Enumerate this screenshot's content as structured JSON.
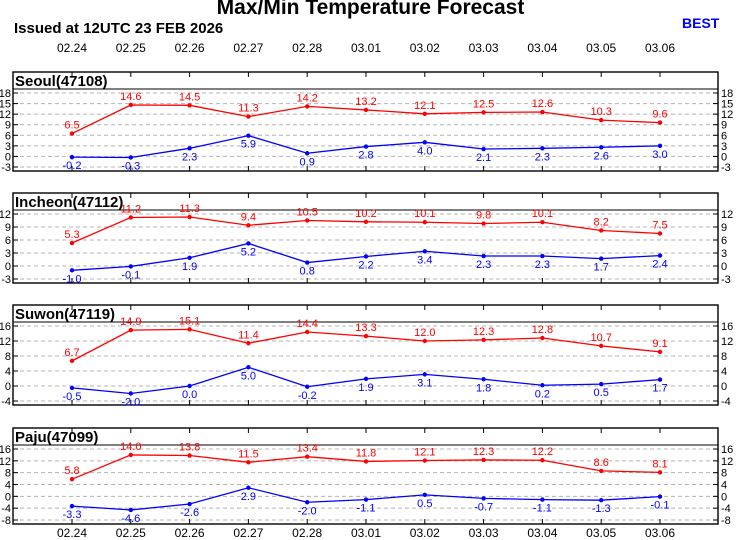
{
  "header": {
    "title": "Max/Min Temperature Forecast",
    "issued": "Issued at 12UTC 23 FEB 2026",
    "badge": "BEST"
  },
  "colors": {
    "max": "#ff0000",
    "min": "#0000ff",
    "badge": "#0000ff",
    "grid": "#b4b4b4",
    "frame": "#000000"
  },
  "chart_data": [
    {
      "type": "line",
      "title": "Seoul(47108)",
      "categories": [
        "02.24",
        "02.25",
        "02.26",
        "02.27",
        "02.28",
        "03.01",
        "03.02",
        "03.03",
        "03.04",
        "03.05",
        "03.06"
      ],
      "series": [
        {
          "values": [
            6.5,
            14.6,
            14.5,
            11.3,
            14.2,
            13.2,
            12.1,
            12.5,
            12.6,
            10.3,
            9.6
          ]
        },
        {
          "values": [
            -0.2,
            -0.3,
            2.3,
            5.9,
            0.9,
            2.8,
            4.0,
            2.1,
            2.3,
            2.6,
            3.0
          ]
        }
      ],
      "ylim": [
        -3,
        18
      ],
      "yticks": [
        -3,
        0,
        3,
        6,
        9,
        12,
        15,
        18
      ],
      "grid": true
    },
    {
      "type": "line",
      "title": "Incheon(47112)",
      "categories": [
        "02.24",
        "02.25",
        "02.26",
        "02.27",
        "02.28",
        "03.01",
        "03.02",
        "03.03",
        "03.04",
        "03.05",
        "03.06"
      ],
      "series": [
        {
          "values": [
            5.3,
            11.2,
            11.3,
            9.4,
            10.5,
            10.2,
            10.1,
            9.8,
            10.1,
            8.2,
            7.5
          ]
        },
        {
          "values": [
            -1.0,
            -0.1,
            1.9,
            5.2,
            0.8,
            2.2,
            3.4,
            2.3,
            2.3,
            1.7,
            2.4
          ]
        }
      ],
      "ylim": [
        -3,
        14
      ],
      "yticks": [
        -3,
        0,
        3,
        6,
        9,
        12
      ],
      "grid": true
    },
    {
      "type": "line",
      "title": "Suwon(47119)",
      "categories": [
        "02.24",
        "02.25",
        "02.26",
        "02.27",
        "02.28",
        "03.01",
        "03.02",
        "03.03",
        "03.04",
        "03.05",
        "03.06"
      ],
      "series": [
        {
          "values": [
            6.7,
            14.9,
            15.1,
            11.4,
            14.4,
            13.3,
            12.0,
            12.3,
            12.8,
            10.7,
            9.1
          ]
        },
        {
          "values": [
            -0.5,
            -2.0,
            0.0,
            5.0,
            -0.2,
            1.9,
            3.1,
            1.8,
            0.2,
            0.5,
            1.7
          ]
        }
      ],
      "ylim": [
        -4,
        18
      ],
      "yticks": [
        -4,
        0,
        4,
        8,
        12,
        16
      ],
      "grid": true
    },
    {
      "type": "line",
      "title": "Paju(47099)",
      "categories": [
        "02.24",
        "02.25",
        "02.26",
        "02.27",
        "02.28",
        "03.01",
        "03.02",
        "03.03",
        "03.04",
        "03.05",
        "03.06"
      ],
      "series": [
        {
          "values": [
            5.8,
            14.0,
            13.8,
            11.5,
            13.4,
            11.8,
            12.1,
            12.3,
            12.2,
            8.6,
            8.1
          ]
        },
        {
          "values": [
            -3.3,
            -4.6,
            -2.6,
            2.9,
            -2.0,
            -1.1,
            0.5,
            -0.7,
            -1.1,
            -1.3,
            -0.1
          ]
        }
      ],
      "ylim": [
        -8,
        17
      ],
      "yticks": [
        -8,
        -4,
        0,
        4,
        8,
        12,
        16
      ],
      "grid": true
    }
  ]
}
